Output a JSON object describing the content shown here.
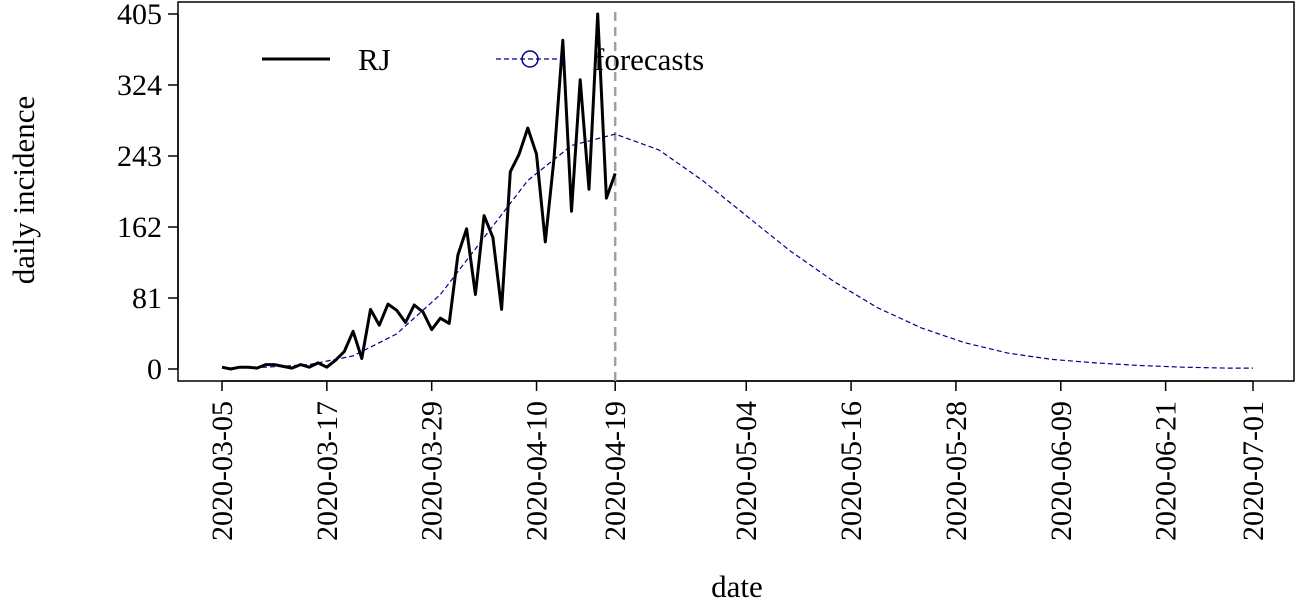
{
  "chart_data": {
    "type": "line",
    "xlabel": "date",
    "ylabel": "daily incidence",
    "x_ticks": [
      "2020-03-05",
      "2020-03-17",
      "2020-03-29",
      "2020-04-10",
      "2020-04-19",
      "2020-05-04",
      "2020-05-16",
      "2020-05-28",
      "2020-06-09",
      "2020-06-21",
      "2020-07-01"
    ],
    "y_ticks": [
      0,
      81,
      162,
      243,
      324,
      405
    ],
    "xlim": [
      "2020-03-05",
      "2020-07-01"
    ],
    "ylim": [
      0,
      405
    ],
    "forecast_start": "2020-04-19",
    "legend_position": "top-left",
    "grid": false,
    "colors": {
      "observed": "#000000",
      "forecast": "#00008b",
      "divider": "#a0a0a0"
    },
    "series": [
      {
        "name": "RJ",
        "style": "solid",
        "x": [
          "2020-03-05",
          "2020-03-06",
          "2020-03-07",
          "2020-03-08",
          "2020-03-09",
          "2020-03-10",
          "2020-03-11",
          "2020-03-12",
          "2020-03-13",
          "2020-03-14",
          "2020-03-15",
          "2020-03-16",
          "2020-03-17",
          "2020-03-18",
          "2020-03-19",
          "2020-03-20",
          "2020-03-21",
          "2020-03-22",
          "2020-03-23",
          "2020-03-24",
          "2020-03-25",
          "2020-03-26",
          "2020-03-27",
          "2020-03-28",
          "2020-03-29",
          "2020-03-30",
          "2020-03-31",
          "2020-04-01",
          "2020-04-02",
          "2020-04-03",
          "2020-04-04",
          "2020-04-05",
          "2020-04-06",
          "2020-04-07",
          "2020-04-08",
          "2020-04-09",
          "2020-04-10",
          "2020-04-11",
          "2020-04-12",
          "2020-04-13",
          "2020-04-14",
          "2020-04-15",
          "2020-04-16",
          "2020-04-17",
          "2020-04-18",
          "2020-04-19"
        ],
        "values": [
          2,
          0,
          2,
          2,
          1,
          5,
          5,
          3,
          1,
          5,
          2,
          7,
          2,
          10,
          20,
          43,
          12,
          68,
          50,
          74,
          67,
          53,
          73,
          65,
          45,
          58,
          52,
          130,
          160,
          85,
          175,
          150,
          68,
          225,
          245,
          275,
          245,
          145,
          240,
          375,
          180,
          330,
          205,
          405,
          195,
          223
        ]
      },
      {
        "name": "forecasts",
        "style": "dashed",
        "x": [
          "2020-03-05",
          "2020-03-10",
          "2020-03-15",
          "2020-03-20",
          "2020-03-25",
          "2020-03-30",
          "2020-04-04",
          "2020-04-09",
          "2020-04-14",
          "2020-04-19",
          "2020-04-24",
          "2020-04-29",
          "2020-05-04",
          "2020-05-09",
          "2020-05-14",
          "2020-05-19",
          "2020-05-24",
          "2020-05-29",
          "2020-06-03",
          "2020-06-08",
          "2020-06-13",
          "2020-06-18",
          "2020-06-23",
          "2020-06-28",
          "2020-07-01"
        ],
        "values": [
          1,
          2,
          5,
          15,
          40,
          85,
          150,
          215,
          255,
          268,
          250,
          215,
          175,
          135,
          100,
          70,
          47,
          30,
          18,
          11,
          7,
          4,
          2,
          1,
          1
        ]
      }
    ]
  }
}
